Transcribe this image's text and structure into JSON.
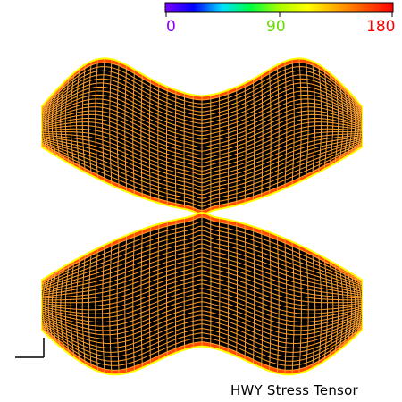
{
  "colorbar": {
    "gradient": [
      "#7a00ff",
      "#0000ff",
      "#00e0ff",
      "#00ff40",
      "#aaff00",
      "#ffff00",
      "#ffaa00",
      "#ff5500",
      "#ff0000"
    ],
    "labels": [
      {
        "text": "0",
        "color": "#8800ff"
      },
      {
        "text": "90",
        "color": "#66dd00"
      },
      {
        "text": "180",
        "color": "#ff0000"
      }
    ]
  },
  "surface": {
    "fill": "#000000",
    "mesh_color": "#ffa030",
    "rim_color": "#ff4a00",
    "rim_highlight_color": "#ffff00"
  },
  "caption": "HWY Stress Tensor"
}
